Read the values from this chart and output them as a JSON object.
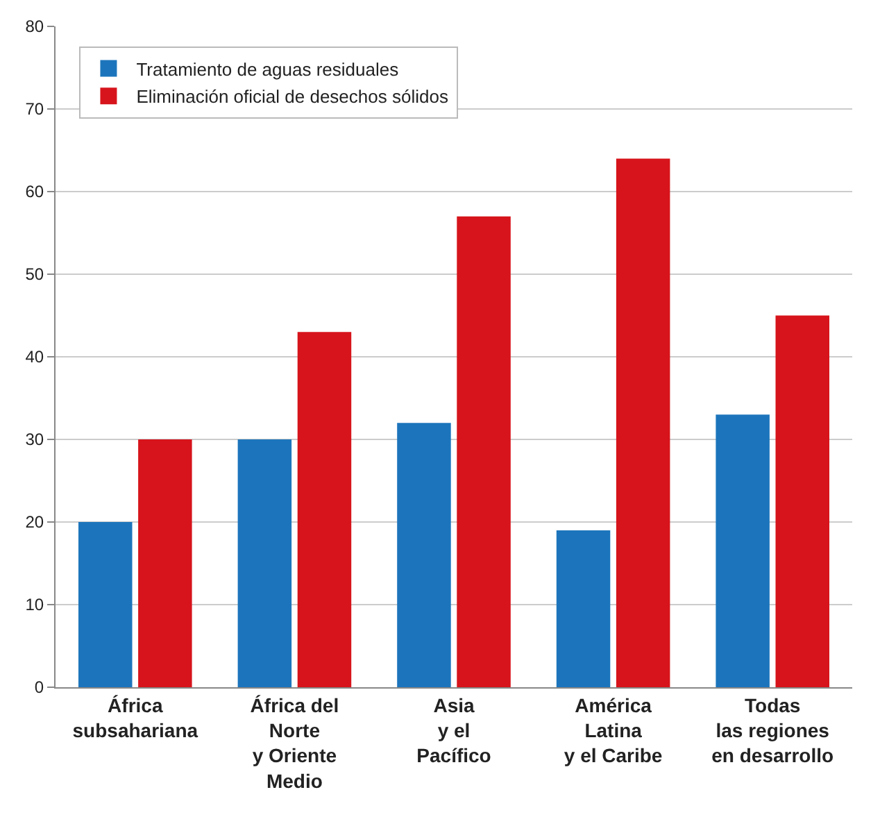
{
  "chart_data": {
    "type": "bar",
    "categories": [
      "África\nsubsahariana",
      "África del\nNorte\ny Oriente\nMedio",
      "Asia\ny el\nPacífico",
      "América\nLatina\ny el Caribe",
      "Todas\nlas regiones\nen desarrollo"
    ],
    "series": [
      {
        "name": "Tratamiento de aguas residuales",
        "color": "#1c75bc",
        "values": [
          20,
          30,
          32,
          19,
          33
        ]
      },
      {
        "name": "Eliminación oficial de desechos sólidos",
        "color": "#d7141b",
        "values": [
          30,
          43,
          57,
          64,
          45
        ]
      }
    ],
    "ylim": [
      0,
      80
    ],
    "yticks": [
      0,
      10,
      20,
      30,
      40,
      50,
      60,
      70,
      80
    ],
    "grid": "y",
    "legend": "top left"
  }
}
